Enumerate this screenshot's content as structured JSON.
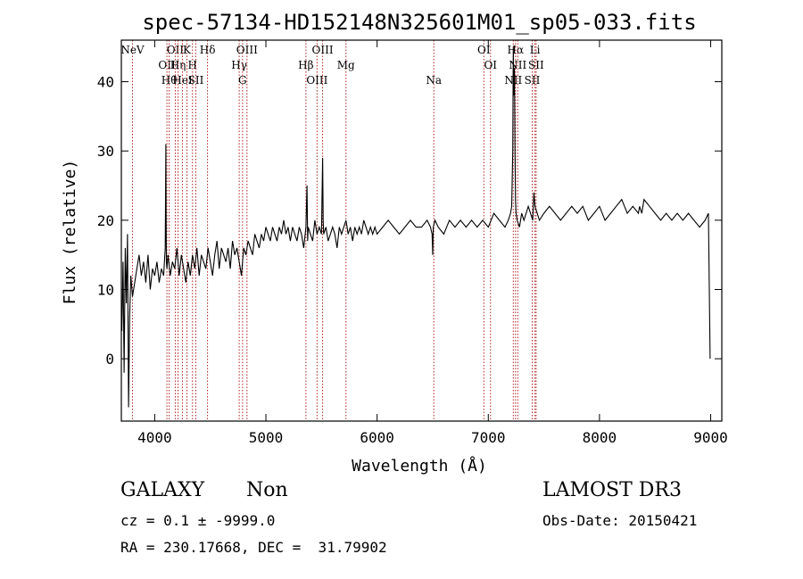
{
  "chart_data": {
    "type": "line",
    "title": "spec-57134-HD152148N325601M01_sp05-033.fits",
    "xlabel": "Wavelength (Å)",
    "ylabel": "Flux (relative)",
    "xlim": [
      3700,
      9100
    ],
    "ylim": [
      -9,
      46
    ],
    "x_ticks": [
      4000,
      5000,
      6000,
      7000,
      8000,
      9000
    ],
    "y_ticks": [
      0,
      10,
      20,
      30,
      40
    ],
    "series": [
      {
        "name": "spectrum",
        "x": [
          3705,
          3715,
          3725,
          3735,
          3745,
          3755,
          3765,
          3775,
          3785,
          3800,
          3820,
          3840,
          3860,
          3880,
          3900,
          3920,
          3940,
          3960,
          3980,
          4000,
          4020,
          4040,
          4060,
          4080,
          4095,
          4100,
          4102,
          4105,
          4110,
          4120,
          4140,
          4160,
          4180,
          4200,
          4220,
          4240,
          4260,
          4280,
          4300,
          4320,
          4340,
          4360,
          4380,
          4400,
          4420,
          4440,
          4460,
          4480,
          4500,
          4520,
          4540,
          4560,
          4580,
          4600,
          4620,
          4640,
          4660,
          4680,
          4700,
          4720,
          4740,
          4760,
          4780,
          4800,
          4820,
          4840,
          4860,
          4880,
          4900,
          4920,
          4940,
          4960,
          4980,
          5000,
          5020,
          5040,
          5060,
          5080,
          5100,
          5120,
          5140,
          5160,
          5180,
          5200,
          5220,
          5240,
          5260,
          5280,
          5300,
          5320,
          5340,
          5360,
          5370,
          5375,
          5380,
          5400,
          5420,
          5440,
          5460,
          5480,
          5500,
          5510,
          5515,
          5520,
          5540,
          5560,
          5580,
          5600,
          5620,
          5640,
          5660,
          5680,
          5700,
          5720,
          5740,
          5760,
          5780,
          5800,
          5820,
          5840,
          5860,
          5880,
          5900,
          5920,
          5940,
          5960,
          5980,
          6000,
          6050,
          6100,
          6150,
          6200,
          6250,
          6300,
          6350,
          6400,
          6450,
          6480,
          6495,
          6500,
          6505,
          6520,
          6550,
          6600,
          6650,
          6700,
          6750,
          6800,
          6850,
          6900,
          6950,
          7000,
          7050,
          7100,
          7150,
          7180,
          7200,
          7210,
          7220,
          7225,
          7230,
          7235,
          7240,
          7245,
          7250,
          7260,
          7280,
          7300,
          7320,
          7340,
          7360,
          7380,
          7400,
          7410,
          7420,
          7440,
          7460,
          7500,
          7550,
          7600,
          7650,
          7700,
          7750,
          7800,
          7850,
          7900,
          7950,
          8000,
          8050,
          8100,
          8150,
          8200,
          8250,
          8300,
          8350,
          8360,
          8380,
          8400,
          8450,
          8500,
          8550,
          8600,
          8650,
          8700,
          8750,
          8800,
          8850,
          8900,
          8950,
          8980,
          8995
        ],
        "y": [
          4,
          14,
          -2,
          16,
          8,
          18,
          -7,
          6,
          12,
          9,
          11,
          13,
          15,
          12,
          14,
          11,
          15,
          10,
          13,
          12,
          14,
          11,
          13,
          12,
          16,
          31,
          22,
          14,
          13,
          15,
          12,
          14,
          13,
          16,
          12,
          15,
          13,
          11,
          14,
          12,
          15,
          13,
          16,
          12,
          15,
          14,
          13,
          16,
          14,
          12,
          15,
          17,
          13,
          16,
          15,
          14,
          16,
          13,
          17,
          15,
          16,
          14,
          12,
          16,
          15,
          17,
          16,
          15,
          18,
          17,
          16,
          18,
          17,
          19,
          18,
          17,
          19,
          18,
          17,
          19,
          18,
          20,
          18,
          19,
          17,
          19,
          18,
          17,
          19,
          18,
          16,
          19,
          25,
          17,
          19,
          18,
          17,
          20,
          18,
          19,
          18,
          29,
          20,
          18,
          19,
          17,
          18,
          19,
          18,
          16,
          19,
          18,
          19,
          20,
          18,
          19,
          17,
          19,
          18,
          19,
          18,
          20,
          19,
          18,
          19,
          18,
          19,
          18,
          19,
          20,
          19,
          18,
          19,
          20,
          19,
          19,
          20,
          19,
          18,
          15,
          19,
          20,
          19,
          18,
          20,
          19,
          20,
          19,
          20,
          19,
          20,
          19,
          21,
          20,
          19,
          20,
          21,
          22,
          30,
          45,
          38,
          42,
          30,
          23,
          21,
          20,
          19,
          21,
          20,
          21,
          22,
          21,
          20,
          24,
          22,
          21,
          20,
          21,
          22,
          21,
          20,
          21,
          22,
          21,
          22,
          20,
          21,
          22,
          20,
          21,
          22,
          23,
          21,
          22,
          21,
          22,
          21,
          23,
          22,
          21,
          20,
          21,
          20,
          21,
          20,
          21,
          20,
          19,
          20,
          21,
          0
        ]
      }
    ],
    "lines": [
      {
        "name": "NeV",
        "x": 3800
      },
      {
        "name": "OII",
        "x": 4110
      },
      {
        "name": "Hθ",
        "x": 4130
      },
      {
        "name": "OII",
        "x": 4185
      },
      {
        "name": "Hη",
        "x": 4210
      },
      {
        "name": "HeI",
        "x": 4250
      },
      {
        "name": "K",
        "x": 4290
      },
      {
        "name": "H",
        "x": 4340
      },
      {
        "name": "SII",
        "x": 4370
      },
      {
        "name": "Hδ",
        "x": 4475
      },
      {
        "name": "Hγ",
        "x": 4760
      },
      {
        "name": "G",
        "x": 4790
      },
      {
        "name": "OIII",
        "x": 4830
      },
      {
        "name": "Hβ",
        "x": 5360
      },
      {
        "name": "OIII",
        "x": 5460
      },
      {
        "name": "OIII",
        "x": 5510
      },
      {
        "name": "Mg",
        "x": 5720
      },
      {
        "name": "Na",
        "x": 6510
      },
      {
        "name": "OI",
        "x": 6960
      },
      {
        "name": "OI",
        "x": 7020
      },
      {
        "name": "NII",
        "x": 7225
      },
      {
        "name": "Hα",
        "x": 7245
      },
      {
        "name": "NII",
        "x": 7265
      },
      {
        "name": "SII",
        "x": 7395
      },
      {
        "name": "Li",
        "x": 7420
      },
      {
        "name": "SII",
        "x": 7430
      }
    ]
  },
  "info": {
    "class_label": "GALAXY",
    "subclass_label": "Non",
    "survey_label": "LAMOST DR3",
    "cz_text": "cz = 0.1 ± -9999.0",
    "obs_date_text": "Obs-Date: 20150421",
    "radec_text": "RA = 230.17668, DEC =  31.79902"
  }
}
